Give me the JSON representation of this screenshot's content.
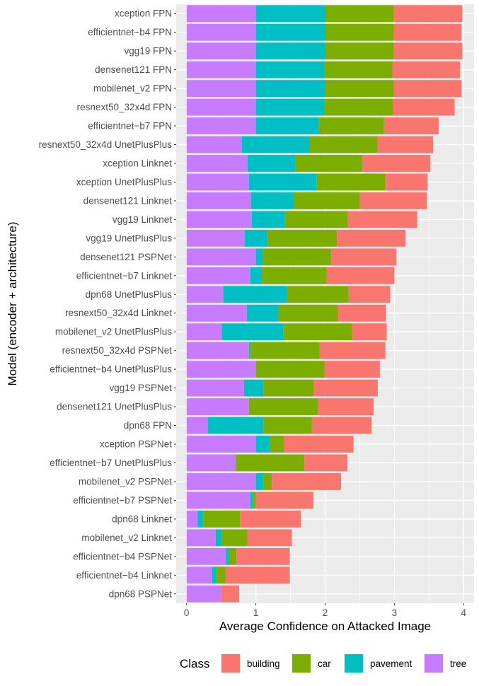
{
  "chart_data": {
    "type": "bar",
    "orientation": "horizontal",
    "stacked": true,
    "title": "",
    "xlabel": "Average Confidence on Attacked Image",
    "ylabel": "Model (encoder + architecture)",
    "xlim": [
      -0.15,
      4.15
    ],
    "xticks": [
      0,
      1,
      2,
      3,
      4
    ],
    "grid": true,
    "legend": {
      "title": "Class",
      "position": "bottom"
    },
    "categories": [
      "xception FPN",
      "efficientnet−b4 FPN",
      "vgg19 FPN",
      "densenet121 FPN",
      "mobilenet_v2 FPN",
      "resnext50_32x4d FPN",
      "efficientnet−b7 FPN",
      "resnext50_32x4d UnetPlusPlus",
      "xception Linknet",
      "xception UnetPlusPlus",
      "densenet121 Linknet",
      "vgg19 Linknet",
      "vgg19 UnetPlusPlus",
      "densenet121 PSPNet",
      "efficientnet−b7 Linknet",
      "dpn68 UnetPlusPlus",
      "resnext50_32x4d Linknet",
      "mobilenet_v2 UnetPlusPlus",
      "resnext50_32x4d PSPNet",
      "efficientnet−b4 UnetPlusPlus",
      "vgg19 PSPNet",
      "densenet121 UnetPlusPlus",
      "dpn68 FPN",
      "xception PSPNet",
      "efficientnet−b7 UnetPlusPlus",
      "mobilenet_v2 PSPNet",
      "efficientnet−b7 PSPNet",
      "dpn68 Linknet",
      "mobilenet_v2 Linknet",
      "efficientnet−b4 PSPNet",
      "efficientnet−b4 Linknet",
      "dpn68 PSPNet"
    ],
    "series": [
      {
        "name": "tree",
        "color": "#C77CFF",
        "values": [
          1.0,
          1.0,
          1.0,
          1.0,
          1.0,
          1.0,
          1.0,
          0.8,
          0.88,
          0.9,
          0.93,
          0.94,
          0.84,
          1.0,
          0.92,
          0.53,
          0.87,
          0.51,
          0.9,
          1.0,
          0.83,
          0.9,
          0.31,
          1.0,
          0.71,
          1.0,
          0.92,
          0.16,
          0.42,
          0.57,
          0.37,
          0.5
        ]
      },
      {
        "name": "pavement",
        "color": "#00BFC4",
        "values": [
          1.0,
          1.0,
          1.0,
          0.99,
          1.0,
          0.99,
          0.91,
          0.97,
          0.69,
          0.98,
          0.62,
          0.48,
          0.33,
          0.1,
          0.17,
          0.92,
          0.45,
          0.89,
          0.02,
          0.0,
          0.28,
          0.0,
          0.8,
          0.2,
          0.0,
          0.11,
          0.04,
          0.08,
          0.09,
          0.04,
          0.06,
          0.0
        ]
      },
      {
        "name": "car",
        "color": "#7CAE00",
        "values": [
          0.99,
          0.99,
          0.99,
          0.98,
          0.99,
          0.99,
          0.94,
          0.99,
          0.97,
          0.99,
          0.95,
          0.91,
          1.0,
          0.99,
          0.93,
          0.89,
          0.87,
          0.99,
          1.0,
          0.99,
          0.73,
          1.0,
          0.7,
          0.21,
          0.99,
          0.12,
          0.04,
          0.53,
          0.37,
          0.11,
          0.13,
          0.0
        ]
      },
      {
        "name": "building",
        "color": "#F8766D",
        "values": [
          0.99,
          0.98,
          0.99,
          0.98,
          0.98,
          0.89,
          0.79,
          0.8,
          0.98,
          0.61,
          0.97,
          1.0,
          0.99,
          0.94,
          0.98,
          0.6,
          0.69,
          0.5,
          0.95,
          0.8,
          0.92,
          0.8,
          0.86,
          1.0,
          0.62,
          1.0,
          0.83,
          0.88,
          0.64,
          0.77,
          0.93,
          0.26
        ]
      }
    ]
  }
}
